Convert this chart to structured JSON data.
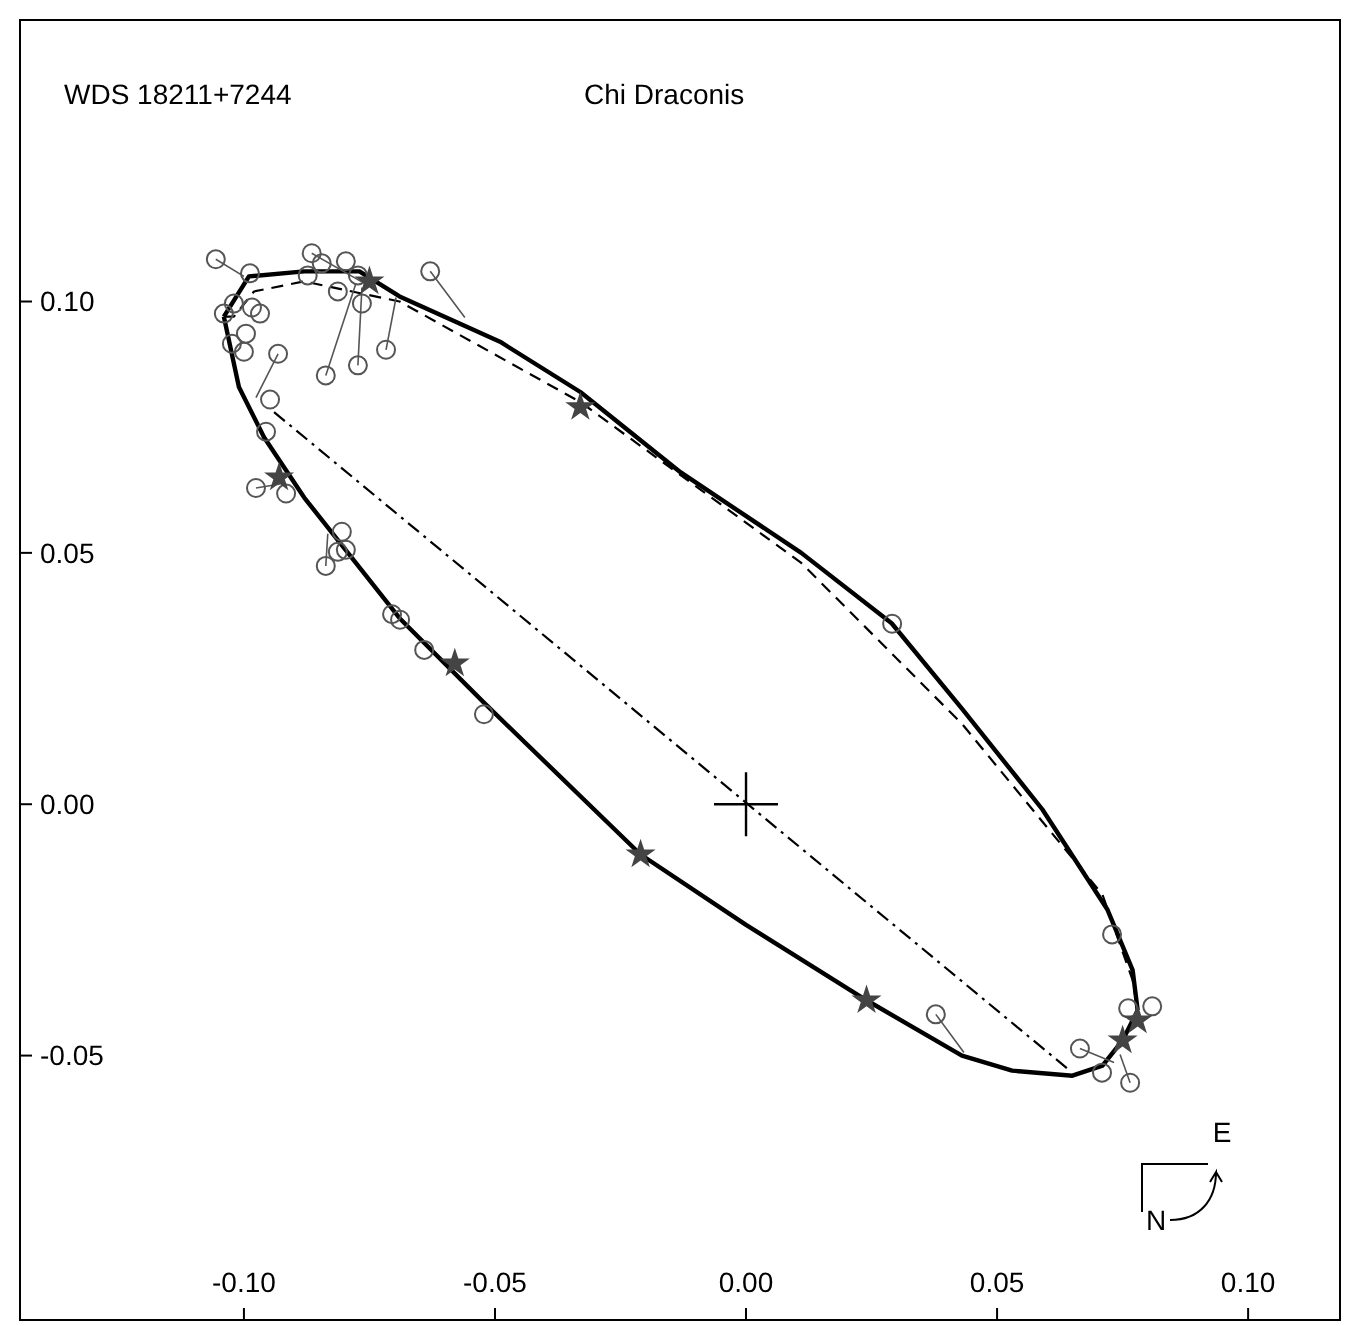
{
  "chart_data": {
    "type": "scatter",
    "title": "WDS 18211+7244",
    "subtitle": "Chi Draconis",
    "xlim": [
      -0.1446,
      0.1183
    ],
    "ylim": [
      -0.1026,
      0.156
    ],
    "xticks": [
      {
        "value": -0.1,
        "label": "-0.10"
      },
      {
        "value": -0.05,
        "label": "-0.05"
      },
      {
        "value": 0,
        "label": "0.00"
      },
      {
        "value": 0.05,
        "label": "0.05"
      },
      {
        "value": 0.1,
        "label": "0.10"
      }
    ],
    "yticks": [
      {
        "value": -0.05,
        "label": "-0.05"
      },
      {
        "value": 0,
        "label": "0.00"
      },
      {
        "value": 0.05,
        "label": "0.05"
      },
      {
        "value": 0.1,
        "label": "0.10"
      }
    ],
    "grid": false,
    "annotations": [
      "N",
      "E"
    ],
    "series": [
      {
        "type": "line",
        "line_style": "solid",
        "color": "#000000",
        "x": [
          -0.104,
          -0.099,
          -0.088,
          -0.077,
          -0.069,
          -0.049,
          -0.033,
          -0.013,
          0.011,
          0.029,
          0.043,
          0.059,
          0.072,
          0.077,
          0.078
        ],
        "values": [
          0.097,
          0.105,
          0.106,
          0.106,
          0.101,
          0.092,
          0.082,
          0.066,
          0.05,
          0.036,
          0.019,
          -0.001,
          -0.021,
          -0.033,
          -0.041
        ]
      },
      {
        "type": "line",
        "line_style": "solid",
        "color": "#000000",
        "x": [
          0.078,
          0.075,
          0.071,
          0.065,
          0.053,
          0.043,
          0.024,
          0.0,
          -0.021,
          -0.052,
          -0.069,
          -0.088,
          -0.096,
          -0.101,
          -0.104
        ],
        "values": [
          -0.041,
          -0.047,
          -0.052,
          -0.054,
          -0.053,
          -0.05,
          -0.039,
          -0.024,
          -0.01,
          0.02,
          0.037,
          0.061,
          0.073,
          0.083,
          0.097
        ]
      },
      {
        "type": "line",
        "line_style": "dashed",
        "color": "#000000",
        "x": [
          -0.104,
          -0.102,
          -0.098,
          -0.088,
          -0.069,
          -0.033,
          0.011,
          0.043,
          0.071,
          0.077,
          0.078
        ],
        "values": [
          0.097,
          0.097,
          0.102,
          0.104,
          0.1,
          0.08,
          0.048,
          0.016,
          -0.018,
          -0.035,
          -0.041
        ]
      },
      {
        "type": "line",
        "line_style": "dashdot",
        "color": "#000000",
        "x": [
          -0.094,
          0.0645
        ],
        "values": [
          0.078,
          -0.053
        ]
      },
      {
        "type": "line",
        "line_style": "solid",
        "color": "#555555",
        "x": [
          -0.1056,
          -0.1,
          null,
          -0.0865,
          -0.076,
          null,
          -0.0629,
          -0.056,
          null,
          -0.0837,
          -0.0777,
          null,
          -0.0773,
          -0.0765,
          null,
          -0.0717,
          -0.0697,
          null,
          -0.0932,
          -0.0976,
          null,
          -0.0837,
          -0.0833,
          null,
          -0.0976,
          -0.0928,
          null,
          0.0378,
          0.0434,
          null,
          0.0665,
          0.0733,
          null,
          0.0765,
          0.0745
        ],
        "values": [
          0.1084,
          0.105,
          null,
          0.1096,
          0.1036,
          null,
          0.106,
          0.0968,
          null,
          0.0853,
          0.1036,
          null,
          0.0873,
          0.1028,
          null,
          0.0904,
          0.1008,
          null,
          0.0896,
          0.0809,
          null,
          0.0474,
          0.0538,
          null,
          0.0629,
          0.0637,
          null,
          -0.0418,
          -0.0494,
          null,
          -0.0486,
          -0.0514,
          null,
          -0.0554,
          -0.0498
        ]
      },
      {
        "type": "scatter",
        "marker": "circle",
        "color": "#555555",
        "x": [
          -0.1056,
          -0.0988,
          -0.0865,
          -0.0845,
          -0.0797,
          -0.0873,
          -0.0813,
          -0.0773,
          -0.0765,
          -0.102,
          -0.104,
          -0.0968,
          -0.0984,
          -0.0996,
          -0.1024,
          -0.1,
          -0.0629,
          -0.0932,
          -0.0837,
          -0.0773,
          -0.0717,
          -0.0948,
          -0.0956,
          -0.0976,
          -0.0916,
          -0.0805,
          -0.0797,
          -0.0813,
          -0.0837,
          -0.0705,
          -0.0689,
          -0.0641,
          -0.0522,
          0.0291,
          0.0378,
          0.0729,
          0.0761,
          0.0809,
          0.0665,
          0.0709,
          0.0765
        ],
        "values": [
          0.1084,
          0.1056,
          0.1096,
          0.1076,
          0.108,
          0.1052,
          0.102,
          0.1052,
          0.0996,
          0.0996,
          0.0976,
          0.0976,
          0.0988,
          0.0936,
          0.0916,
          0.09,
          0.106,
          0.0896,
          0.0853,
          0.0873,
          0.0904,
          0.0805,
          0.0741,
          0.0629,
          0.0618,
          0.0542,
          0.0506,
          0.0502,
          0.0474,
          0.0378,
          0.0367,
          0.0307,
          0.0179,
          0.0359,
          -0.0418,
          -0.0259,
          -0.0406,
          -0.0402,
          -0.0486,
          -0.0534,
          -0.0554
        ]
      },
      {
        "type": "scatter",
        "marker": "star",
        "color": "#444444",
        "x": [
          -0.075,
          -0.033,
          -0.093,
          -0.058,
          -0.021,
          0.024,
          0.075,
          0.078
        ],
        "values": [
          0.104,
          0.079,
          0.065,
          0.028,
          -0.01,
          -0.039,
          -0.047,
          -0.043
        ]
      },
      {
        "type": "scatter",
        "marker": "cross",
        "color": "#000000",
        "x": [
          0
        ],
        "values": [
          0
        ]
      }
    ]
  }
}
